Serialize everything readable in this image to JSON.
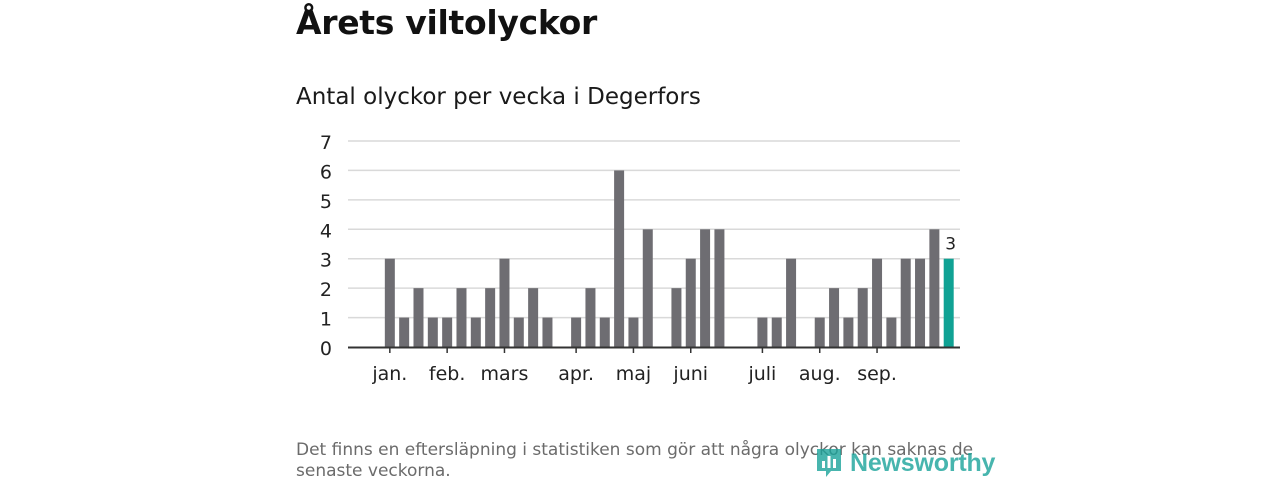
{
  "header": {
    "title": "Årets viltolyckor",
    "subtitle": "Antal olyckor per vecka i Degerfors"
  },
  "footnote": "Det finns en eftersläpning i statistiken som gör att några olyckor kan saknas de senaste veckorna.",
  "logo": {
    "text": "Newsworthy"
  },
  "colors": {
    "bar": "#6e6d72",
    "highlight": "#10a294",
    "grid": "#d9d9d9",
    "axis": "#333333"
  },
  "chart_data": {
    "type": "bar",
    "ylim": [
      0,
      7
    ],
    "yticks": [
      "0",
      "1",
      "2",
      "3",
      "4",
      "5",
      "6",
      "7"
    ],
    "values": [
      null,
      3,
      1,
      2,
      1,
      1,
      2,
      1,
      2,
      3,
      1,
      2,
      1,
      null,
      1,
      2,
      1,
      6,
      1,
      4,
      null,
      2,
      3,
      4,
      4,
      null,
      null,
      1,
      1,
      3,
      null,
      1,
      2,
      1,
      2,
      3,
      1,
      3,
      3,
      4,
      3
    ],
    "highlight_index": 40,
    "highlight_label": "3",
    "months": [
      {
        "label": "jan.",
        "pos": 1
      },
      {
        "label": "feb.",
        "pos": 5
      },
      {
        "label": "mars",
        "pos": 9
      },
      {
        "label": "apr.",
        "pos": 14
      },
      {
        "label": "maj",
        "pos": 18
      },
      {
        "label": "juni",
        "pos": 22
      },
      {
        "label": "juli",
        "pos": 27
      },
      {
        "label": "aug.",
        "pos": 31
      },
      {
        "label": "sep.",
        "pos": 35
      }
    ],
    "grid": true
  }
}
